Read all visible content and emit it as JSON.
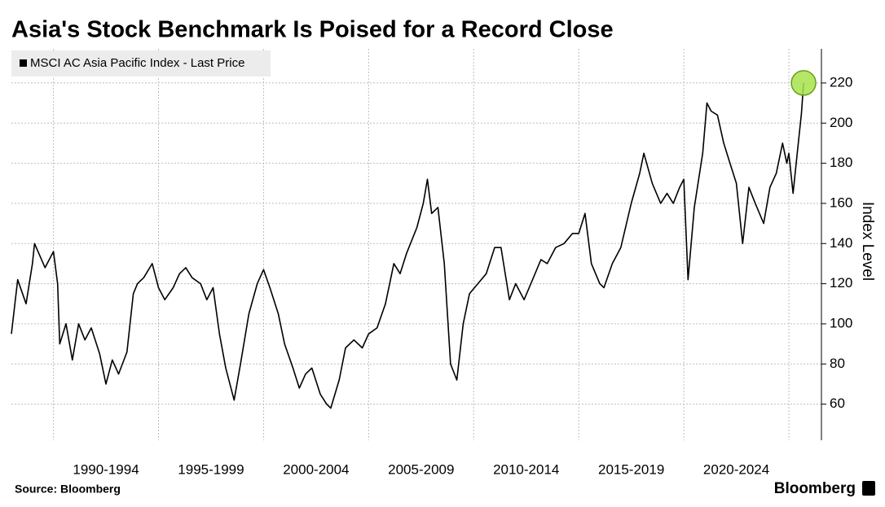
{
  "chart_data": {
    "type": "line",
    "title": "Asia's Stock Benchmark Is Poised for a Record Close",
    "source": "Source: Bloomberg",
    "brand": "Bloomberg",
    "y_label": "Index Level",
    "x": [
      1988.0,
      1988.3,
      1988.7,
      1989.0,
      1989.1,
      1989.6,
      1990.0,
      1990.2,
      1990.3,
      1990.6,
      1990.9,
      1991.2,
      1991.5,
      1991.8,
      1992.2,
      1992.5,
      1992.8,
      1993.1,
      1993.5,
      1993.8,
      1994.0,
      1994.3,
      1994.7,
      1995.0,
      1995.3,
      1995.7,
      1996.0,
      1996.3,
      1996.6,
      1997.0,
      1997.3,
      1997.6,
      1997.9,
      1998.2,
      1998.6,
      1998.9,
      1999.3,
      1999.7,
      2000.0,
      2000.3,
      2000.7,
      2001.0,
      2001.4,
      2001.7,
      2002.0,
      2002.3,
      2002.7,
      2003.0,
      2003.2,
      2003.6,
      2003.9,
      2004.3,
      2004.7,
      2005.0,
      2005.4,
      2005.8,
      2006.2,
      2006.5,
      2006.8,
      2007.3,
      2007.6,
      2007.8,
      2008.0,
      2008.3,
      2008.6,
      2008.9,
      2009.2,
      2009.5,
      2009.8,
      2010.2,
      2010.6,
      2011.0,
      2011.3,
      2011.7,
      2012.0,
      2012.4,
      2012.8,
      2013.2,
      2013.5,
      2013.9,
      2014.3,
      2014.7,
      2015.0,
      2015.3,
      2015.6,
      2016.0,
      2016.2,
      2016.6,
      2017.0,
      2017.5,
      2017.9,
      2018.1,
      2018.5,
      2018.9,
      2019.2,
      2019.5,
      2019.8,
      2020.0,
      2020.2,
      2020.5,
      2020.9,
      2021.1,
      2021.3,
      2021.6,
      2021.9,
      2022.2,
      2022.5,
      2022.8,
      2023.1,
      2023.4,
      2023.8,
      2024.1,
      2024.4,
      2024.7,
      2024.9,
      2025.0,
      2025.2,
      2025.4,
      2025.6,
      2025.7
    ],
    "series": [
      {
        "name": "MSCI AC Asia Pacific Index - Last Price",
        "color": "#000000",
        "values": [
          95,
          122,
          110,
          130,
          140,
          128,
          136,
          120,
          90,
          100,
          82,
          100,
          92,
          98,
          85,
          70,
          82,
          75,
          86,
          115,
          120,
          123,
          130,
          118,
          112,
          118,
          125,
          128,
          123,
          120,
          112,
          118,
          95,
          78,
          62,
          80,
          105,
          120,
          127,
          118,
          105,
          90,
          78,
          68,
          75,
          78,
          65,
          60,
          58,
          72,
          88,
          92,
          88,
          95,
          98,
          110,
          130,
          125,
          135,
          148,
          160,
          172,
          155,
          158,
          130,
          80,
          72,
          100,
          115,
          120,
          125,
          138,
          138,
          112,
          120,
          112,
          122,
          132,
          130,
          138,
          140,
          145,
          145,
          155,
          130,
          120,
          118,
          130,
          138,
          160,
          175,
          185,
          170,
          160,
          165,
          160,
          168,
          172,
          122,
          158,
          185,
          210,
          206,
          204,
          190,
          180,
          170,
          140,
          168,
          160,
          150,
          168,
          175,
          190,
          180,
          185,
          165,
          185,
          205,
          220
        ]
      }
    ],
    "highlight_color": "#a6e34a",
    "xlim": [
      1988.0,
      2026.55
    ],
    "ylim": [
      42,
      237
    ],
    "yticks": [
      60,
      80,
      100,
      120,
      140,
      160,
      180,
      200,
      220
    ],
    "xticks": [
      {
        "value": 1990,
        "label": "1990-1994"
      },
      {
        "value": 1995,
        "label": "1995-1999"
      },
      {
        "value": 2000,
        "label": "2000-2004"
      },
      {
        "value": 2005,
        "label": "2005-2009"
      },
      {
        "value": 2010,
        "label": "2010-2014"
      },
      {
        "value": 2015,
        "label": "2015-2019"
      },
      {
        "value": 2020,
        "label": "2020-2024"
      }
    ],
    "x_gridlines": [
      1990,
      1995,
      2000,
      2005,
      2010,
      2015,
      2020,
      2025
    ],
    "grid": true
  }
}
